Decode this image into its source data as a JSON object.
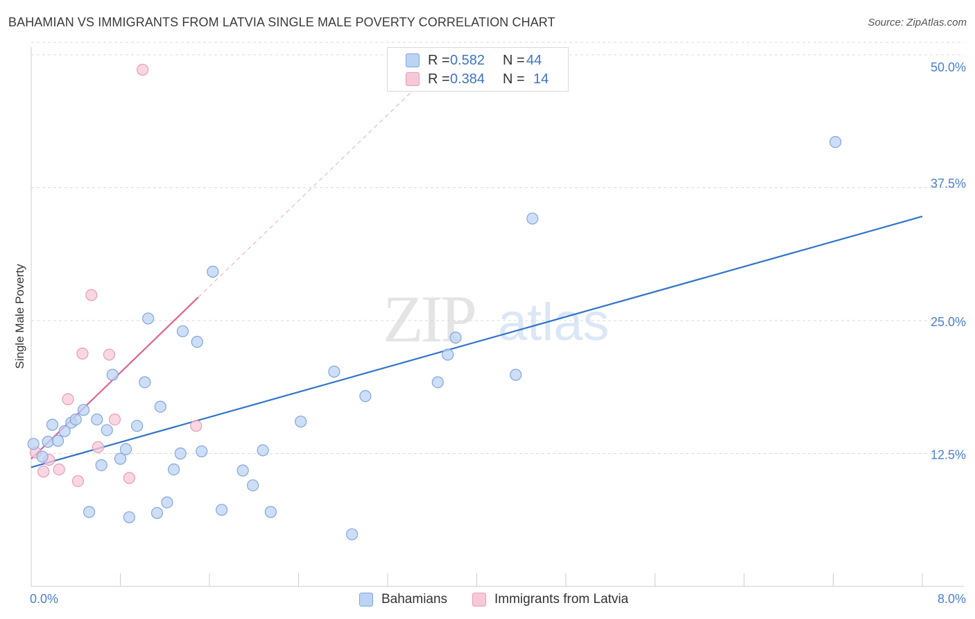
{
  "header": {
    "title": "BAHAMIAN VS IMMIGRANTS FROM LATVIA SINGLE MALE POVERTY CORRELATION CHART",
    "source": "Source: ZipAtlas.com"
  },
  "legend": {
    "rows": [
      {
        "r_label": "R = ",
        "r_value": "0.582",
        "n_label": "N = ",
        "n_value": "44"
      },
      {
        "r_label": "R = ",
        "r_value": "0.384",
        "n_label": "N = ",
        "n_value": "14"
      }
    ]
  },
  "bottom_legend": {
    "series_a": "Bahamians",
    "series_b": "Immigrants from Latvia"
  },
  "watermark": {
    "zip": "ZIP",
    "atlas": "atlas"
  },
  "colors": {
    "blue_fill": "#bcd3f3",
    "blue_stroke": "#7fa6dd",
    "blue_line": "#2f74c8",
    "pink_fill": "#f7c9d8",
    "pink_stroke": "#eb9ab5",
    "pink_line": "#e0628e",
    "grid": "#d8d8d8",
    "tick_text": "#4a7fd0"
  },
  "chart_data": {
    "type": "scatter",
    "title": "BAHAMIAN VS IMMIGRANTS FROM LATVIA SINGLE MALE POVERTY CORRELATION CHART",
    "xlabel": "",
    "ylabel": "Single Male Poverty",
    "xlim": [
      0,
      8
    ],
    "ylim": [
      0,
      50
    ],
    "x_tick_labels": [
      "0.0%",
      "8.0%"
    ],
    "y_ticks": [
      12.5,
      25.0,
      37.5,
      50.0
    ],
    "y_tick_labels": [
      "12.5%",
      "25.0%",
      "37.5%",
      "50.0%"
    ],
    "grid": "horizontal dashed",
    "legend_position": "top-center",
    "series": [
      {
        "name": "Bahamians",
        "color": "#bcd3f3",
        "points": [
          [
            0.02,
            13.4
          ],
          [
            0.1,
            12.2
          ],
          [
            0.15,
            13.6
          ],
          [
            0.19,
            15.2
          ],
          [
            0.24,
            13.7
          ],
          [
            0.3,
            14.6
          ],
          [
            0.36,
            15.4
          ],
          [
            0.4,
            15.7
          ],
          [
            0.47,
            16.6
          ],
          [
            0.52,
            7.0
          ],
          [
            0.59,
            15.7
          ],
          [
            0.63,
            11.4
          ],
          [
            0.68,
            14.7
          ],
          [
            0.73,
            19.9
          ],
          [
            0.8,
            12.0
          ],
          [
            0.85,
            12.9
          ],
          [
            0.88,
            6.5
          ],
          [
            0.95,
            15.1
          ],
          [
            1.02,
            19.2
          ],
          [
            1.05,
            25.2
          ],
          [
            1.13,
            6.9
          ],
          [
            1.16,
            16.9
          ],
          [
            1.22,
            7.9
          ],
          [
            1.28,
            11.0
          ],
          [
            1.34,
            12.5
          ],
          [
            1.36,
            24.0
          ],
          [
            1.49,
            23.0
          ],
          [
            1.53,
            12.7
          ],
          [
            1.63,
            29.6
          ],
          [
            1.71,
            7.2
          ],
          [
            1.9,
            10.9
          ],
          [
            1.99,
            9.5
          ],
          [
            2.08,
            12.8
          ],
          [
            2.15,
            7.0
          ],
          [
            2.42,
            15.5
          ],
          [
            2.72,
            20.2
          ],
          [
            2.88,
            4.9
          ],
          [
            3.0,
            17.9
          ],
          [
            3.65,
            19.2
          ],
          [
            3.74,
            21.8
          ],
          [
            3.81,
            23.4
          ],
          [
            4.35,
            19.9
          ],
          [
            4.5,
            34.6
          ],
          [
            7.22,
            41.8
          ]
        ],
        "trend": {
          "x": [
            0.0,
            8.0
          ],
          "y": [
            11.2,
            34.8
          ]
        }
      },
      {
        "name": "Immigrants from Latvia",
        "color": "#f7c9d8",
        "points": [
          [
            0.04,
            12.6
          ],
          [
            0.11,
            10.8
          ],
          [
            0.16,
            11.9
          ],
          [
            0.25,
            11.0
          ],
          [
            0.33,
            17.6
          ],
          [
            0.42,
            9.9
          ],
          [
            0.46,
            21.9
          ],
          [
            0.54,
            27.4
          ],
          [
            0.6,
            13.1
          ],
          [
            0.7,
            21.8
          ],
          [
            0.75,
            15.7
          ],
          [
            0.88,
            10.2
          ],
          [
            1.0,
            48.6
          ],
          [
            1.48,
            15.1
          ]
        ],
        "trend": {
          "x": [
            0.0,
            1.5
          ],
          "y": [
            12.0,
            27.2
          ]
        },
        "trend_extension": {
          "x": [
            1.5,
            3.6
          ],
          "y": [
            27.2,
            48.4
          ]
        }
      }
    ]
  }
}
